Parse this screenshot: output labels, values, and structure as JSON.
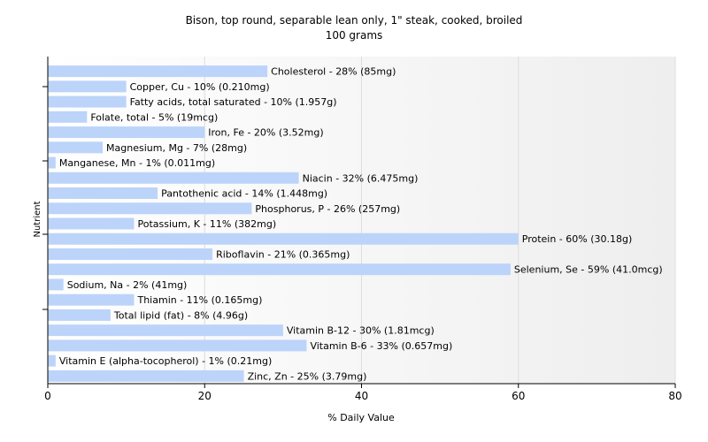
{
  "chart_data": {
    "type": "bar",
    "orientation": "horizontal",
    "title": "Bison, top round, separable lean only, 1\" steak, cooked, broiled",
    "subtitle": "100 grams",
    "xlabel": "% Daily Value",
    "ylabel": "Nutrient",
    "xlim": [
      0,
      80
    ],
    "xticks": [
      "0",
      "20",
      "40",
      "60",
      "80"
    ],
    "grid": true,
    "bar_color": "#bcd4fa",
    "categories": [
      "Cholesterol",
      "Copper, Cu",
      "Fatty acids, total saturated",
      "Folate, total",
      "Iron, Fe",
      "Magnesium, Mg",
      "Manganese, Mn",
      "Niacin",
      "Pantothenic acid",
      "Phosphorus, P",
      "Potassium, K",
      "Protein",
      "Riboflavin",
      "Selenium, Se",
      "Sodium, Na",
      "Thiamin",
      "Total lipid (fat)",
      "Vitamin B-12",
      "Vitamin B-6",
      "Vitamin E (alpha-tocopherol)",
      "Zinc, Zn"
    ],
    "values": [
      28,
      10,
      10,
      5,
      20,
      7,
      1,
      32,
      14,
      26,
      11,
      60,
      21,
      59,
      2,
      11,
      8,
      30,
      33,
      1,
      25
    ],
    "labels": [
      "Cholesterol - 28% (85mg)",
      "Copper, Cu - 10% (0.210mg)",
      "Fatty acids, total saturated - 10% (1.957g)",
      "Folate, total - 5% (19mcg)",
      "Iron, Fe - 20% (3.52mg)",
      "Magnesium, Mg - 7% (28mg)",
      "Manganese, Mn - 1% (0.011mg)",
      "Niacin - 32% (6.475mg)",
      "Pantothenic acid - 14% (1.448mg)",
      "Phosphorus, P - 26% (257mg)",
      "Potassium, K - 11% (382mg)",
      "Protein - 60% (30.18g)",
      "Riboflavin - 21% (0.365mg)",
      "Selenium, Se - 59% (41.0mcg)",
      "Sodium, Na - 2% (41mg)",
      "Thiamin - 11% (0.165mg)",
      "Total lipid (fat) - 8% (4.96g)",
      "Vitamin B-12 - 30% (1.81mcg)",
      "Vitamin B-6 - 33% (0.657mg)",
      "Vitamin E (alpha-tocopherol) - 1% (0.21mg)",
      "Zinc, Zn - 25% (3.79mg)"
    ]
  }
}
